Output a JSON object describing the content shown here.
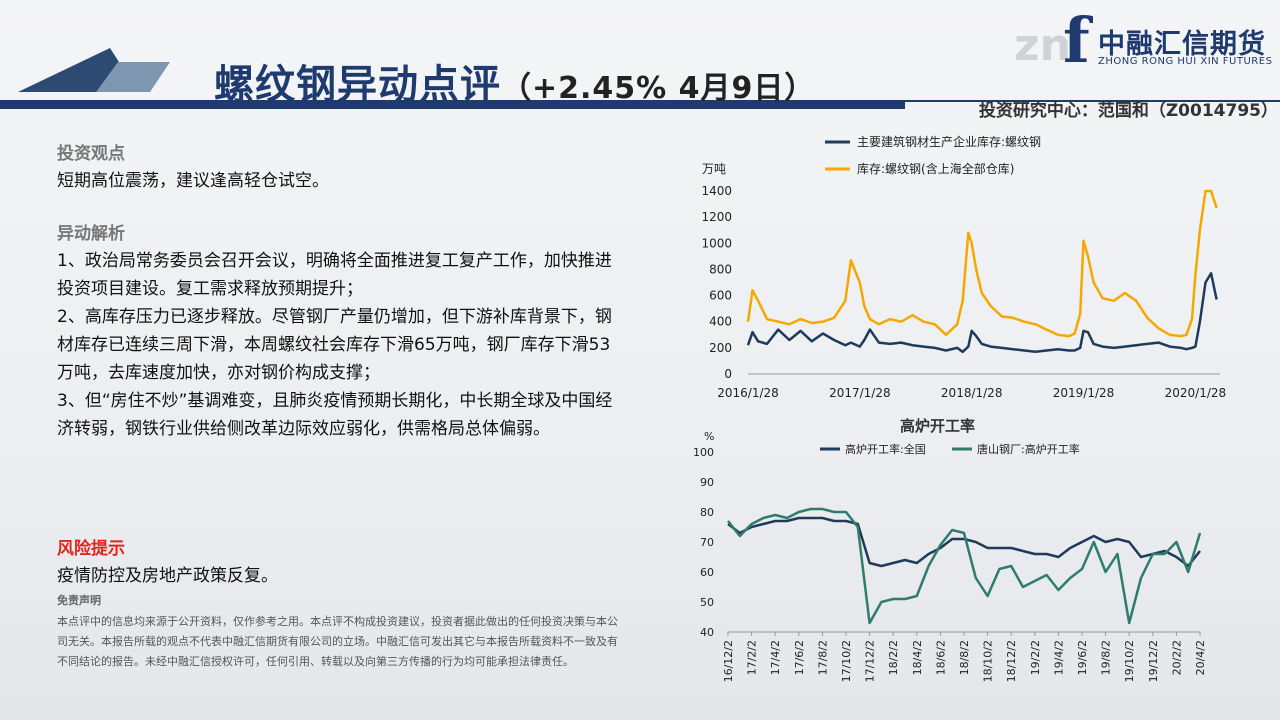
{
  "header": {
    "title_main": "螺纹钢异动点评",
    "title_open": "（",
    "title_pct": "+2.45%",
    "title_date": "  4月9日）",
    "author": "投资研究中心：范国和（Z0014795）"
  },
  "logo": {
    "mark_left": "zn",
    "mark_f": "f",
    "name_cn": "中融汇信期货",
    "name_en": "ZHONG RONG HUI XIN FUTURES"
  },
  "content": {
    "view_heading": "投资观点",
    "view_text": "短期高位震荡，建议逢高轻仓试空。",
    "analysis_heading": "异动解析",
    "analysis_paragraphs": [
      "1、政治局常务委员会召开会议，明确将全面推进复工复产工作，加快推进投资项目建设。复工需求释放预期提升；",
      "2、高库存压力已逐步释放。尽管钢厂产量仍增加，但下游补库背景下，钢材库存已连续三周下滑，本周螺纹社会库存下滑65万吨，钢厂库存下滑53万吨，去库速度加快，亦对钢价构成支撑；",
      "3、但“房住不炒”基调难变，且肺炎疫情预期长期化，中长期全球及中国经济转弱，钢铁行业供给侧改革边际效应弱化，供需格局总体偏弱。"
    ],
    "risk_heading": "风险提示",
    "risk_text": "疫情防控及房地产政策反复。",
    "disclaimer_heading": "免责声明",
    "disclaimer_text": "本点评中的信息均来源于公开资料，仅作参考之用。本点评不构成投资建议，投资者据此做出的任何投资决策与本公司无关。本报告所载的观点不代表中融汇信期货有限公司的立场。中融汇信可发出其它与本报告所载资料不一致及有不同结论的报告。未经中融汇信授权许可，任何引用、转载以及向第三方传播的行为均可能承担法律责任。"
  },
  "colors": {
    "navy": "#1e3a6e",
    "accent_red": "#e0261c",
    "series_dark": "#1f3a5a",
    "series_orange": "#f5a800",
    "series_teal": "#2e7d6b"
  },
  "chart_data": [
    {
      "type": "line",
      "title": "",
      "ylabel": "万吨",
      "ylim": [
        0,
        1400
      ],
      "yticks": [
        "0",
        "200",
        "400",
        "600",
        "800",
        "1000",
        "1200",
        "1400"
      ],
      "xticks": [
        "2016/1/28",
        "2017/1/28",
        "2018/1/28",
        "2019/1/28",
        "2020/1/28"
      ],
      "legend_placement": "top",
      "series": [
        {
          "name": "主要建筑钢材生产企业库存:螺纹钢",
          "color": "#1f3a5a",
          "x": [
            2016.08,
            2016.12,
            2016.17,
            2016.25,
            2016.35,
            2016.45,
            2016.55,
            2016.65,
            2016.75,
            2016.85,
            2016.95,
            2017.0,
            2017.08,
            2017.12,
            2017.17,
            2017.25,
            2017.35,
            2017.45,
            2017.55,
            2017.65,
            2017.75,
            2017.85,
            2017.95,
            2018.0,
            2018.05,
            2018.08,
            2018.12,
            2018.17,
            2018.25,
            2018.35,
            2018.45,
            2018.55,
            2018.65,
            2018.75,
            2018.85,
            2018.95,
            2019.0,
            2019.05,
            2019.08,
            2019.12,
            2019.17,
            2019.25,
            2019.35,
            2019.45,
            2019.55,
            2019.65,
            2019.75,
            2019.85,
            2019.95,
            2020.0,
            2020.05,
            2020.08,
            2020.12,
            2020.17,
            2020.22,
            2020.27
          ],
          "values": [
            220,
            320,
            250,
            230,
            340,
            260,
            330,
            250,
            310,
            260,
            220,
            240,
            210,
            260,
            340,
            240,
            230,
            240,
            220,
            210,
            200,
            180,
            200,
            170,
            210,
            330,
            290,
            230,
            210,
            200,
            190,
            180,
            170,
            180,
            190,
            180,
            180,
            200,
            330,
            320,
            230,
            210,
            200,
            210,
            220,
            230,
            240,
            210,
            200,
            190,
            200,
            210,
            400,
            700,
            770,
            570
          ]
        },
        {
          "name": "库存:螺纹钢(含上海全部仓库)",
          "color": "#f5a800",
          "x": [
            2016.08,
            2016.12,
            2016.17,
            2016.25,
            2016.35,
            2016.45,
            2016.55,
            2016.65,
            2016.75,
            2016.85,
            2016.95,
            2017.0,
            2017.08,
            2017.12,
            2017.17,
            2017.25,
            2017.35,
            2017.45,
            2017.55,
            2017.65,
            2017.75,
            2017.85,
            2017.95,
            2018.0,
            2018.05,
            2018.08,
            2018.12,
            2018.17,
            2018.25,
            2018.35,
            2018.45,
            2018.55,
            2018.65,
            2018.75,
            2018.85,
            2018.95,
            2019.0,
            2019.05,
            2019.08,
            2019.12,
            2019.17,
            2019.25,
            2019.35,
            2019.45,
            2019.55,
            2019.65,
            2019.75,
            2019.85,
            2019.95,
            2020.0,
            2020.05,
            2020.08,
            2020.12,
            2020.17,
            2020.22,
            2020.27
          ],
          "values": [
            400,
            640,
            560,
            420,
            400,
            380,
            420,
            390,
            400,
            430,
            560,
            870,
            700,
            520,
            420,
            380,
            420,
            400,
            450,
            400,
            380,
            300,
            380,
            560,
            1080,
            1000,
            800,
            620,
            520,
            440,
            430,
            400,
            380,
            340,
            300,
            290,
            310,
            460,
            1020,
            900,
            700,
            580,
            560,
            620,
            560,
            430,
            350,
            300,
            290,
            300,
            420,
            760,
            1100,
            1400,
            1400,
            1270
          ]
        }
      ]
    },
    {
      "type": "line",
      "title": "高炉开工率",
      "ylabel": "%",
      "ylim": [
        40,
        100
      ],
      "yticks": [
        "40",
        "50",
        "60",
        "70",
        "80",
        "90",
        "100"
      ],
      "xticks": [
        "16/12/2",
        "17/2/2",
        "17/4/2",
        "17/6/2",
        "17/8/2",
        "17/10/2",
        "17/12/2",
        "18/2/2",
        "18/4/2",
        "18/6/2",
        "18/8/2",
        "18/10/2",
        "18/12/2",
        "19/2/2",
        "19/4/2",
        "19/6/2",
        "19/8/2",
        "19/10/2",
        "19/12/2",
        "20/2/2",
        "20/4/2"
      ],
      "legend_placement": "top",
      "series": [
        {
          "name": "高炉开工率:全国",
          "color": "#1f3a5a",
          "x": [
            0,
            0.5,
            1,
            1.5,
            2,
            2.5,
            3,
            3.5,
            4,
            4.5,
            5,
            5.5,
            6,
            6.5,
            7,
            7.5,
            8,
            8.5,
            9,
            9.5,
            10,
            10.5,
            11,
            11.5,
            12,
            12.5,
            13,
            13.5,
            14,
            14.5,
            15,
            15.5,
            16,
            16.5,
            17,
            17.5,
            18,
            18.5,
            19,
            19.5,
            20
          ],
          "values": [
            76,
            73,
            75,
            76,
            77,
            77,
            78,
            78,
            78,
            77,
            77,
            76,
            63,
            62,
            63,
            64,
            63,
            66,
            68,
            71,
            71,
            70,
            68,
            68,
            68,
            67,
            66,
            66,
            65,
            68,
            70,
            72,
            70,
            71,
            70,
            65,
            66,
            67,
            65,
            62,
            67
          ]
        },
        {
          "name": "唐山钢厂:高炉开工率",
          "color": "#2e7d6b",
          "x": [
            0,
            0.5,
            1,
            1.5,
            2,
            2.5,
            3,
            3.5,
            4,
            4.5,
            5,
            5.5,
            6,
            6.5,
            7,
            7.5,
            8,
            8.5,
            9,
            9.5,
            10,
            10.5,
            11,
            11.5,
            12,
            12.5,
            13,
            13.5,
            14,
            14.5,
            15,
            15.5,
            16,
            16.5,
            17,
            17.5,
            18,
            18.5,
            19,
            19.5,
            20
          ],
          "values": [
            77,
            72,
            76,
            78,
            79,
            78,
            80,
            81,
            81,
            80,
            80,
            75,
            43,
            50,
            51,
            51,
            52,
            62,
            69,
            74,
            73,
            58,
            52,
            61,
            62,
            55,
            57,
            59,
            54,
            58,
            61,
            70,
            60,
            66,
            43,
            58,
            66,
            66,
            70,
            60,
            73
          ]
        }
      ]
    }
  ]
}
